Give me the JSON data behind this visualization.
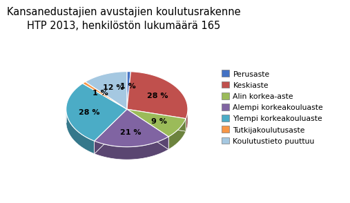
{
  "title": "Kansanedustajien avustajien koulutusrakenne\nHTP 2013, henkilöstön lukumäärä 165",
  "slices": [
    1,
    28,
    9,
    21,
    28,
    1,
    12
  ],
  "labels": [
    "Perusaste",
    "Keskiaste",
    "Alin korkea-aste",
    "Alempi korkeakouluaste",
    "Ylempi korkeakouluaste",
    "Tutkijakoulutusaste",
    "Koulutustieto puuttuu"
  ],
  "colors": [
    "#4472C4",
    "#C0504D",
    "#9BBB59",
    "#8064A2",
    "#4BACC6",
    "#F79646",
    "#A5C8E1"
  ],
  "pct_labels": [
    "1 %",
    "28 %",
    "9 %",
    "21 %",
    "28 %",
    "1 %",
    "12 %"
  ],
  "background_color": "#FFFFFF",
  "title_fontsize": 10.5
}
